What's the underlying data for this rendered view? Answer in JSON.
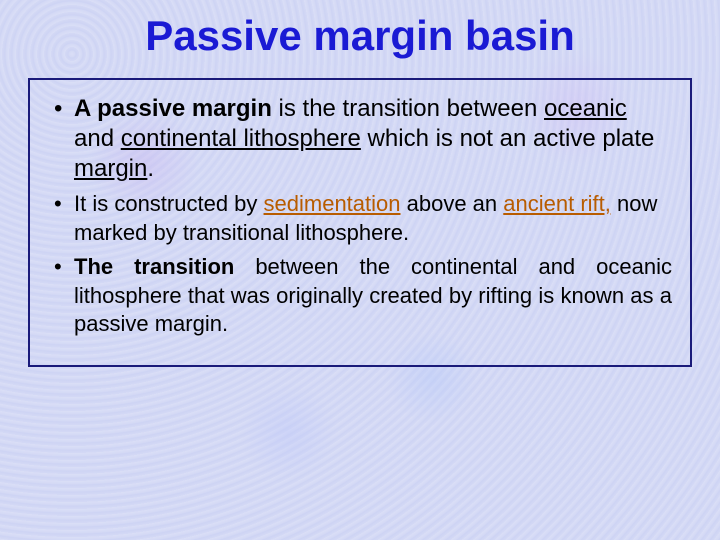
{
  "title": {
    "text": "Passive margin basin",
    "color": "#1a1ad4",
    "fontsize": 42,
    "weight": "bold"
  },
  "content_box": {
    "border_color": "#1a1a7a",
    "border_width": 2
  },
  "bullets": {
    "b1": {
      "fontsize": 24,
      "color": "#000000",
      "parts": {
        "p0": "A passive margin",
        "p1": " is the transition between ",
        "p2": "oceanic",
        "p3": " and ",
        "p4": "continental lithosphere",
        "p5": " which is not an active plate ",
        "p6": "margin",
        "p7": "."
      }
    },
    "b2": {
      "fontsize": 22,
      "color": "#000000",
      "link_color": "#b85c00",
      "parts": {
        "p0": "It is constructed by ",
        "p1": "sedimentation",
        "p2": " above an ",
        "p3": "ancient rift,",
        "p4": " now marked by transitional lithosphere."
      }
    },
    "b3": {
      "fontsize": 22,
      "color": "#000000",
      "parts": {
        "p0": "The transition",
        "p1": " between the continental and oceanic lithosphere that was originally created by rifting is known as a passive margin."
      }
    }
  },
  "background_color": "#d4d9f5"
}
